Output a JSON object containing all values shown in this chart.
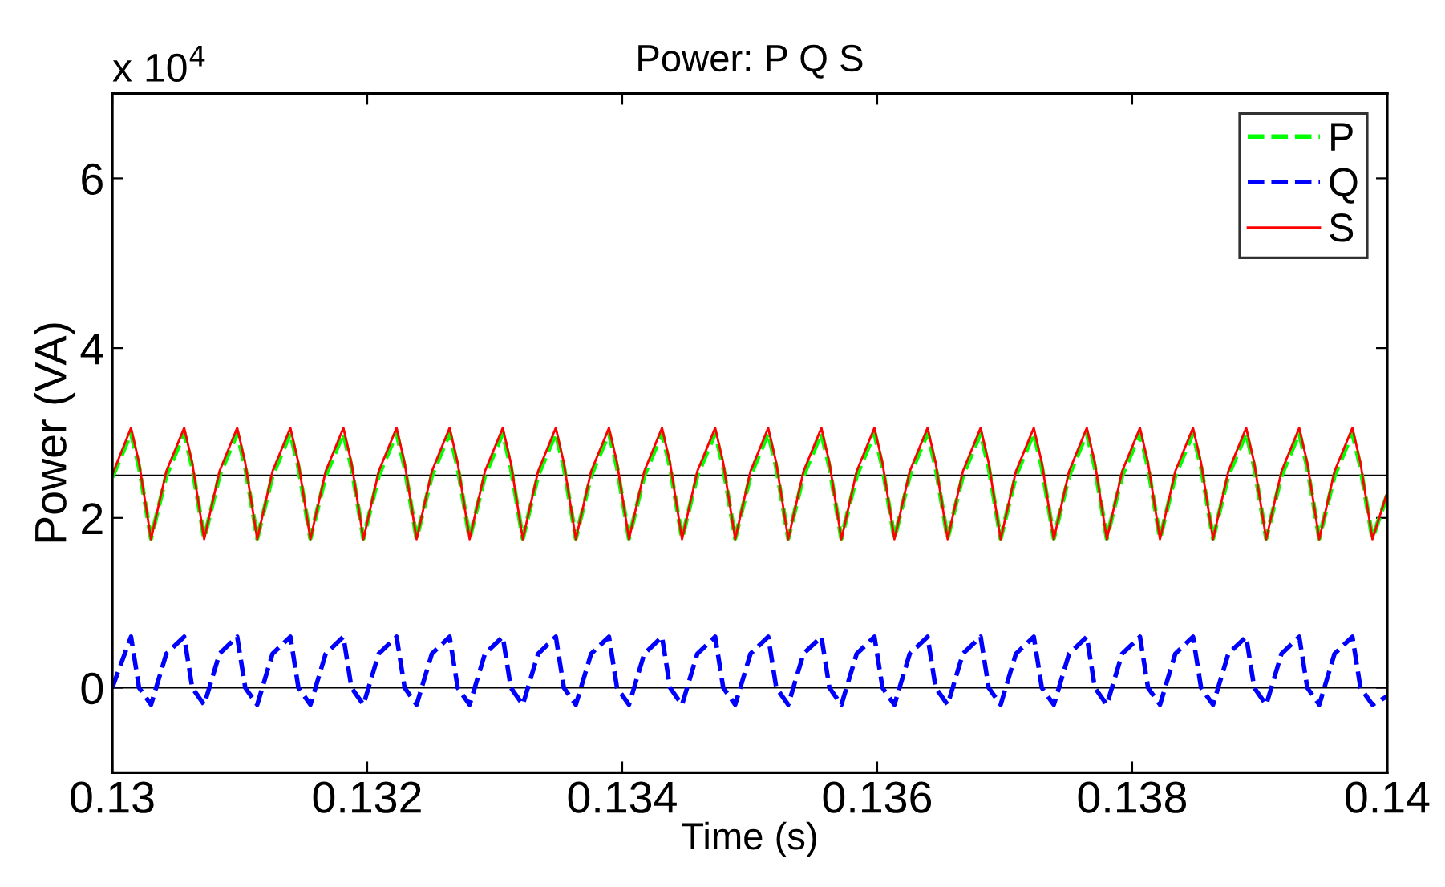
{
  "chart_data": {
    "type": "line",
    "title": "Power: P Q S",
    "xlabel": "Time (s)",
    "ylabel": "Power (VA)",
    "annotations": [
      "x 10$^{4}$"
    ],
    "x": [
      0.13,
      0.130147,
      0.13021,
      0.130304,
      0.130424,
      0.130564,
      0.130627,
      0.130721,
      0.130841,
      0.13098,
      0.131043,
      0.131137,
      0.131257,
      0.131397,
      0.13146,
      0.131554,
      0.131674,
      0.131813,
      0.131876,
      0.13197,
      0.13209,
      0.13223,
      0.132293,
      0.132387,
      0.132507,
      0.132646,
      0.132709,
      0.132803,
      0.132923,
      0.133063,
      0.133126,
      0.13322,
      0.13334,
      0.133479,
      0.133542,
      0.133636,
      0.133756,
      0.133896,
      0.133959,
      0.134053,
      0.134173,
      0.134312,
      0.134375,
      0.134469,
      0.134589,
      0.134729,
      0.134792,
      0.134886,
      0.135006,
      0.135145,
      0.135208,
      0.135302,
      0.135422,
      0.135562,
      0.135625,
      0.135719,
      0.135839,
      0.135978,
      0.136041,
      0.136135,
      0.136255,
      0.136395,
      0.136458,
      0.136552,
      0.136672,
      0.136811,
      0.136874,
      0.136968,
      0.137088,
      0.137228,
      0.137291,
      0.137385,
      0.137505,
      0.137644,
      0.137707,
      0.137801,
      0.137921,
      0.138061,
      0.138124,
      0.138218,
      0.138338,
      0.138477,
      0.13854,
      0.138634,
      0.138754,
      0.138894,
      0.138957,
      0.139051,
      0.139171,
      0.13931,
      0.139373,
      0.139467,
      0.139587,
      0.139727,
      0.13979,
      0.139884,
      0.14
    ],
    "series": [
      {
        "name": "P",
        "color": "#00ff00",
        "line_style": "dashed",
        "values": [
          2.48,
          3.0,
          2.6,
          1.76,
          2.5,
          3.0,
          2.6,
          1.76,
          2.5,
          3.0,
          2.6,
          1.76,
          2.5,
          3.0,
          2.6,
          1.76,
          2.5,
          3.0,
          2.6,
          1.76,
          2.5,
          3.0,
          2.6,
          1.76,
          2.5,
          3.0,
          2.6,
          1.76,
          2.5,
          3.0,
          2.6,
          1.76,
          2.5,
          3.0,
          2.6,
          1.76,
          2.5,
          3.0,
          2.6,
          1.76,
          2.5,
          3.0,
          2.6,
          1.76,
          2.5,
          3.0,
          2.6,
          1.76,
          2.5,
          3.0,
          2.6,
          1.76,
          2.5,
          3.0,
          2.6,
          1.76,
          2.5,
          3.0,
          2.6,
          1.76,
          2.5,
          3.0,
          2.6,
          1.76,
          2.5,
          3.0,
          2.6,
          1.76,
          2.5,
          3.0,
          2.6,
          1.76,
          2.5,
          3.0,
          2.6,
          1.76,
          2.5,
          3.0,
          2.6,
          1.76,
          2.5,
          3.0,
          2.6,
          1.76,
          2.5,
          3.0,
          2.6,
          1.76,
          2.5,
          3.0,
          2.6,
          1.76,
          2.5,
          3.0,
          2.6,
          1.76,
          2.27
        ]
      },
      {
        "name": "Q",
        "color": "#0000ff",
        "line_style": "dashed",
        "values": [
          0,
          0.6,
          0,
          -0.2,
          0.4,
          0.6,
          0,
          -0.2,
          0.4,
          0.6,
          0,
          -0.2,
          0.4,
          0.6,
          0,
          -0.2,
          0.4,
          0.6,
          0,
          -0.2,
          0.4,
          0.6,
          0,
          -0.2,
          0.4,
          0.6,
          0,
          -0.2,
          0.4,
          0.6,
          0,
          -0.2,
          0.4,
          0.6,
          0,
          -0.2,
          0.4,
          0.6,
          0,
          -0.2,
          0.4,
          0.6,
          0,
          -0.2,
          0.4,
          0.6,
          0,
          -0.2,
          0.4,
          0.6,
          0,
          -0.2,
          0.4,
          0.6,
          0,
          -0.2,
          0.4,
          0.6,
          0,
          -0.2,
          0.4,
          0.6,
          0,
          -0.2,
          0.4,
          0.6,
          0,
          -0.2,
          0.4,
          0.6,
          0,
          -0.2,
          0.4,
          0.6,
          0,
          -0.2,
          0.4,
          0.6,
          0,
          -0.2,
          0.4,
          0.6,
          0,
          -0.2,
          0.4,
          0.6,
          0,
          -0.2,
          0.4,
          0.6,
          0,
          -0.2,
          0.4,
          0.6,
          0,
          -0.2,
          -0.1
        ]
      },
      {
        "name": "S",
        "color": "#ff0000",
        "line_style": "solid",
        "values": [
          2.51,
          3.06,
          2.65,
          1.75,
          2.55,
          3.06,
          2.65,
          1.75,
          2.55,
          3.06,
          2.65,
          1.75,
          2.55,
          3.06,
          2.65,
          1.75,
          2.55,
          3.06,
          2.65,
          1.75,
          2.55,
          3.06,
          2.65,
          1.75,
          2.55,
          3.06,
          2.65,
          1.75,
          2.55,
          3.06,
          2.65,
          1.75,
          2.55,
          3.06,
          2.65,
          1.75,
          2.55,
          3.06,
          2.65,
          1.75,
          2.55,
          3.06,
          2.65,
          1.75,
          2.55,
          3.06,
          2.65,
          1.75,
          2.55,
          3.06,
          2.65,
          1.75,
          2.55,
          3.06,
          2.65,
          1.75,
          2.55,
          3.06,
          2.65,
          1.75,
          2.55,
          3.06,
          2.65,
          1.75,
          2.55,
          3.06,
          2.65,
          1.75,
          2.55,
          3.06,
          2.65,
          1.75,
          2.55,
          3.06,
          2.65,
          1.75,
          2.55,
          3.06,
          2.65,
          1.75,
          2.55,
          3.06,
          2.65,
          1.75,
          2.55,
          3.06,
          2.65,
          1.75,
          2.55,
          3.06,
          2.65,
          1.75,
          2.55,
          3.06,
          2.65,
          1.75,
          2.3
        ]
      }
    ],
    "ref_lines": [
      {
        "axis": "y",
        "value": 2.5,
        "color": "#000000"
      },
      {
        "axis": "y",
        "value": 0,
        "color": "#000000"
      }
    ],
    "xlim": [
      0.13,
      0.14
    ],
    "xticks": [
      0.13,
      0.132,
      0.134,
      0.136,
      0.138,
      0.14
    ],
    "ylim": [
      -1,
      7
    ],
    "yticks": [
      0,
      2,
      4,
      6
    ],
    "grid": false,
    "legend": "top right",
    "marker": "none"
  }
}
